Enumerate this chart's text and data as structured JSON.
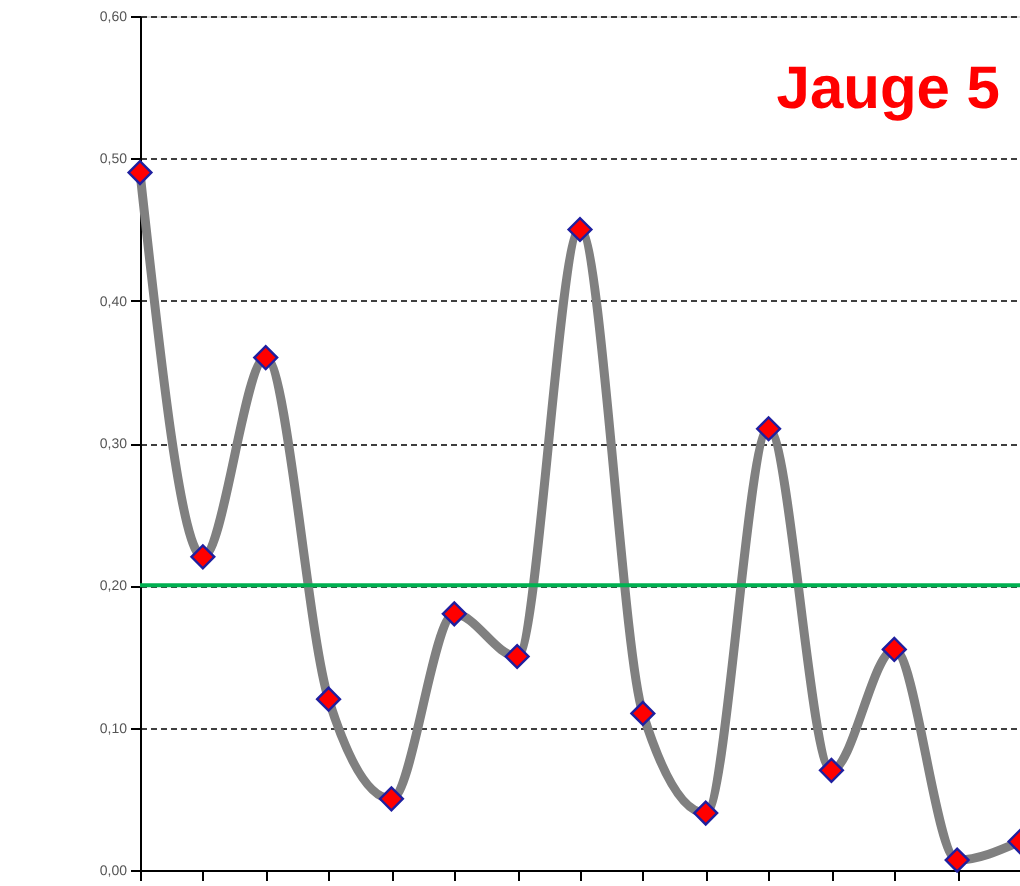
{
  "chart_data": {
    "type": "line",
    "title": "Jauge 5",
    "categories": [
      null,
      null,
      null,
      null,
      null,
      null,
      null,
      null,
      null,
      null,
      null,
      null,
      null,
      null,
      null
    ],
    "series": [
      {
        "color": "#808080",
        "values": [
          0.49,
          0.22,
          0.36,
          0.12,
          0.05,
          0.18,
          0.15,
          0.45,
          0.11,
          0.04,
          0.31,
          0.07,
          0.155,
          0.007,
          0.02
        ]
      }
    ],
    "ylim": [
      0,
      0.6
    ],
    "yticks": [
      {
        "value": 0,
        "label": "0,00"
      },
      {
        "value": 0.1,
        "label": "0,10"
      },
      {
        "value": 0.2,
        "label": "0,20"
      },
      {
        "value": 0.3,
        "label": "0,30"
      },
      {
        "value": 0.4,
        "label": "0,40"
      },
      {
        "value": 0.5,
        "label": "0,50"
      },
      {
        "value": 0.6,
        "label": "0,60"
      }
    ],
    "ref_lines": [
      {
        "axis": "y",
        "value": 0.2,
        "color": "#00b050"
      }
    ],
    "grid": "y",
    "marker": "diamond",
    "line_style": "solid"
  }
}
